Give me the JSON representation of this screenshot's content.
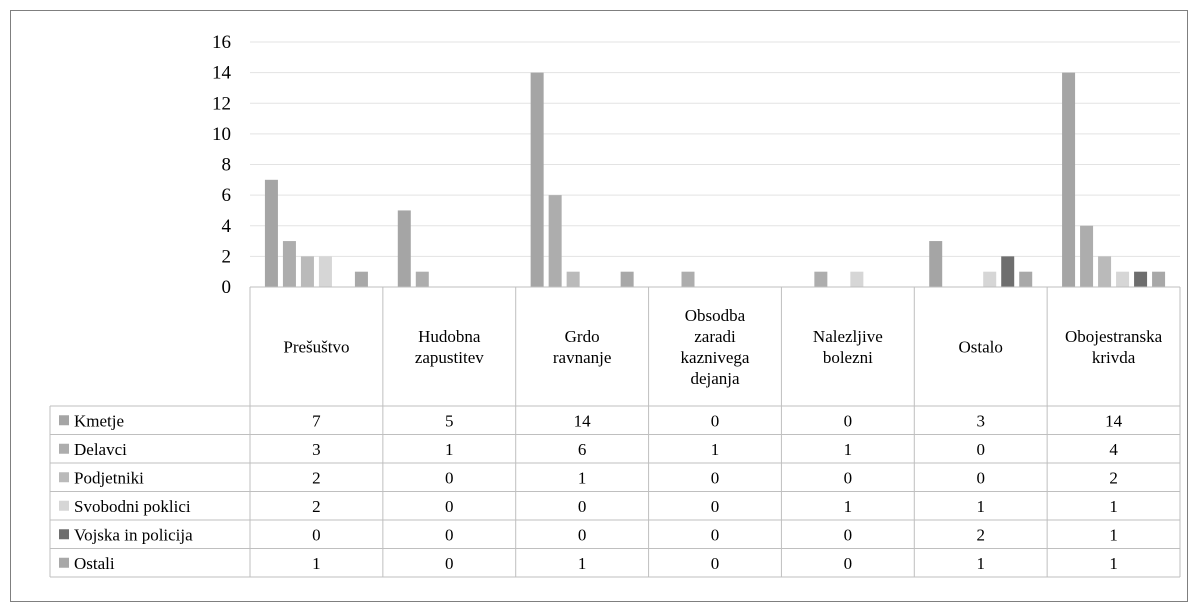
{
  "chart_data": {
    "type": "bar",
    "title": "",
    "xlabel": "",
    "ylabel": "",
    "ylim": [
      0,
      16
    ],
    "y_ticks": [
      0,
      2,
      4,
      6,
      8,
      10,
      12,
      14,
      16
    ],
    "grid": true,
    "legend": "data-table-left",
    "categories": [
      [
        "Prešuštvo"
      ],
      [
        "Hudobna",
        "zapustitev"
      ],
      [
        "Grdo",
        "ravnanje"
      ],
      [
        "Obsodba",
        "zaradi",
        "kaznivega",
        "dejanja"
      ],
      [
        "Nalezljive",
        "bolezni"
      ],
      [
        "Ostalo"
      ],
      [
        "Obojestranska",
        "krivda"
      ]
    ],
    "series": [
      {
        "name": "Kmetje",
        "color": "#a5a5a5",
        "values": [
          7,
          5,
          14,
          0,
          0,
          3,
          14
        ]
      },
      {
        "name": "Delavci",
        "color": "#adadad",
        "values": [
          3,
          1,
          6,
          1,
          1,
          0,
          4
        ]
      },
      {
        "name": "Podjetniki",
        "color": "#bababa",
        "values": [
          2,
          0,
          1,
          0,
          0,
          0,
          2
        ]
      },
      {
        "name": "Svobodni poklici",
        "color": "#d6d6d6",
        "values": [
          2,
          0,
          0,
          0,
          1,
          1,
          1
        ]
      },
      {
        "name": "Vojska in policija",
        "color": "#6e6e6e",
        "values": [
          0,
          0,
          0,
          0,
          0,
          2,
          1
        ]
      },
      {
        "name": "Ostali",
        "color": "#a8a8a8",
        "values": [
          1,
          0,
          1,
          0,
          0,
          1,
          1
        ]
      }
    ]
  }
}
